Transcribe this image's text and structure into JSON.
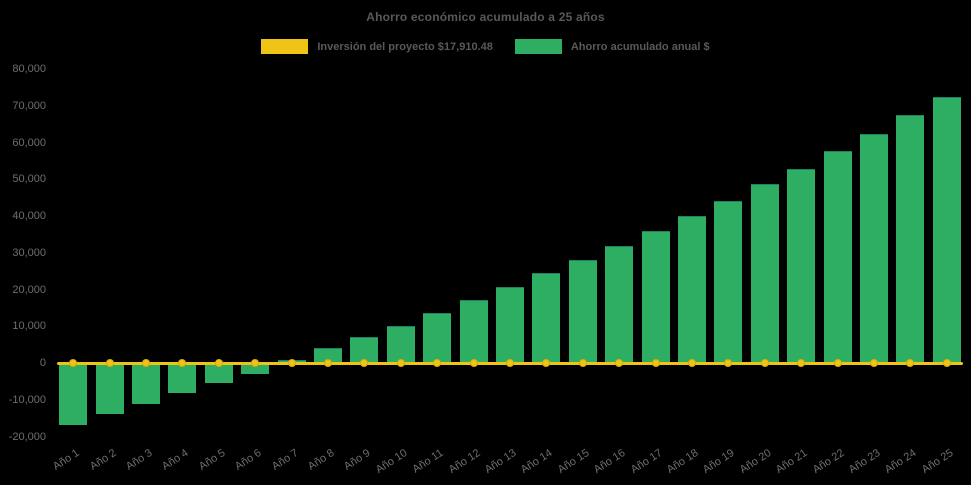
{
  "title": "Ahorro económico acumulado a 25 años",
  "colors": {
    "background": "#000000",
    "bar_green": "#2DAE62",
    "line_yellow": "#EFC416",
    "title_text": "#595959",
    "axis_text": "#6E6E6E"
  },
  "legend": [
    {
      "id": "inversion",
      "label": "Inversión del proyecto $17,910.48",
      "color": "#EFC416"
    },
    {
      "id": "ahorro",
      "label": "Ahorro acumulado anual $",
      "color": "#2DAE62"
    }
  ],
  "chart_data": {
    "type": "bar",
    "title": "Ahorro económico acumulado a 25 años",
    "categories": [
      "Año 1",
      "Año 2",
      "Año 3",
      "Año 4",
      "Año 5",
      "Año 6",
      "Año 7",
      "Año 8",
      "Año 9",
      "Año 10",
      "Año 11",
      "Año 12",
      "Año 13",
      "Año 14",
      "Año 15",
      "Año 16",
      "Año 17",
      "Año 18",
      "Año 19",
      "Año 20",
      "Año 21",
      "Año 22",
      "Año 23",
      "Año 24",
      "Año 25"
    ],
    "series": [
      {
        "name": "Inversión del proyecto $17,910.48",
        "type": "line",
        "color": "#EFC416",
        "marker": "circle",
        "values": [
          0,
          0,
          0,
          0,
          0,
          0,
          0,
          0,
          0,
          0,
          0,
          0,
          0,
          0,
          0,
          0,
          0,
          0,
          0,
          0,
          0,
          0,
          0,
          0,
          0
        ]
      },
      {
        "name": "Ahorro acumulado anual $",
        "type": "bar",
        "color": "#2DAE62",
        "values": [
          -16600,
          -13700,
          -10800,
          -8000,
          -5100,
          -2600,
          900,
          4100,
          7000,
          10100,
          13600,
          17100,
          20700,
          24400,
          28000,
          31900,
          35900,
          40000,
          44100,
          48600,
          52900,
          57700,
          62400,
          67400,
          72500
        ]
      }
    ],
    "xlabel": "",
    "ylabel": "",
    "ylim": [
      -20000,
      80000
    ],
    "y_ticks": [
      {
        "value": 80000,
        "label": "80,000"
      },
      {
        "value": 70000,
        "label": "70,000"
      },
      {
        "value": 60000,
        "label": "60,000"
      },
      {
        "value": 50000,
        "label": "50,000"
      },
      {
        "value": 40000,
        "label": "40,000"
      },
      {
        "value": 30000,
        "label": "30,000"
      },
      {
        "value": 20000,
        "label": "20,000"
      },
      {
        "value": 10000,
        "label": "10,000"
      },
      {
        "value": 0,
        "label": "0"
      },
      {
        "value": -10000,
        "label": "-10,000"
      },
      {
        "value": -20000,
        "label": "-20,000"
      }
    ],
    "grid": false,
    "legend_position": "top"
  }
}
